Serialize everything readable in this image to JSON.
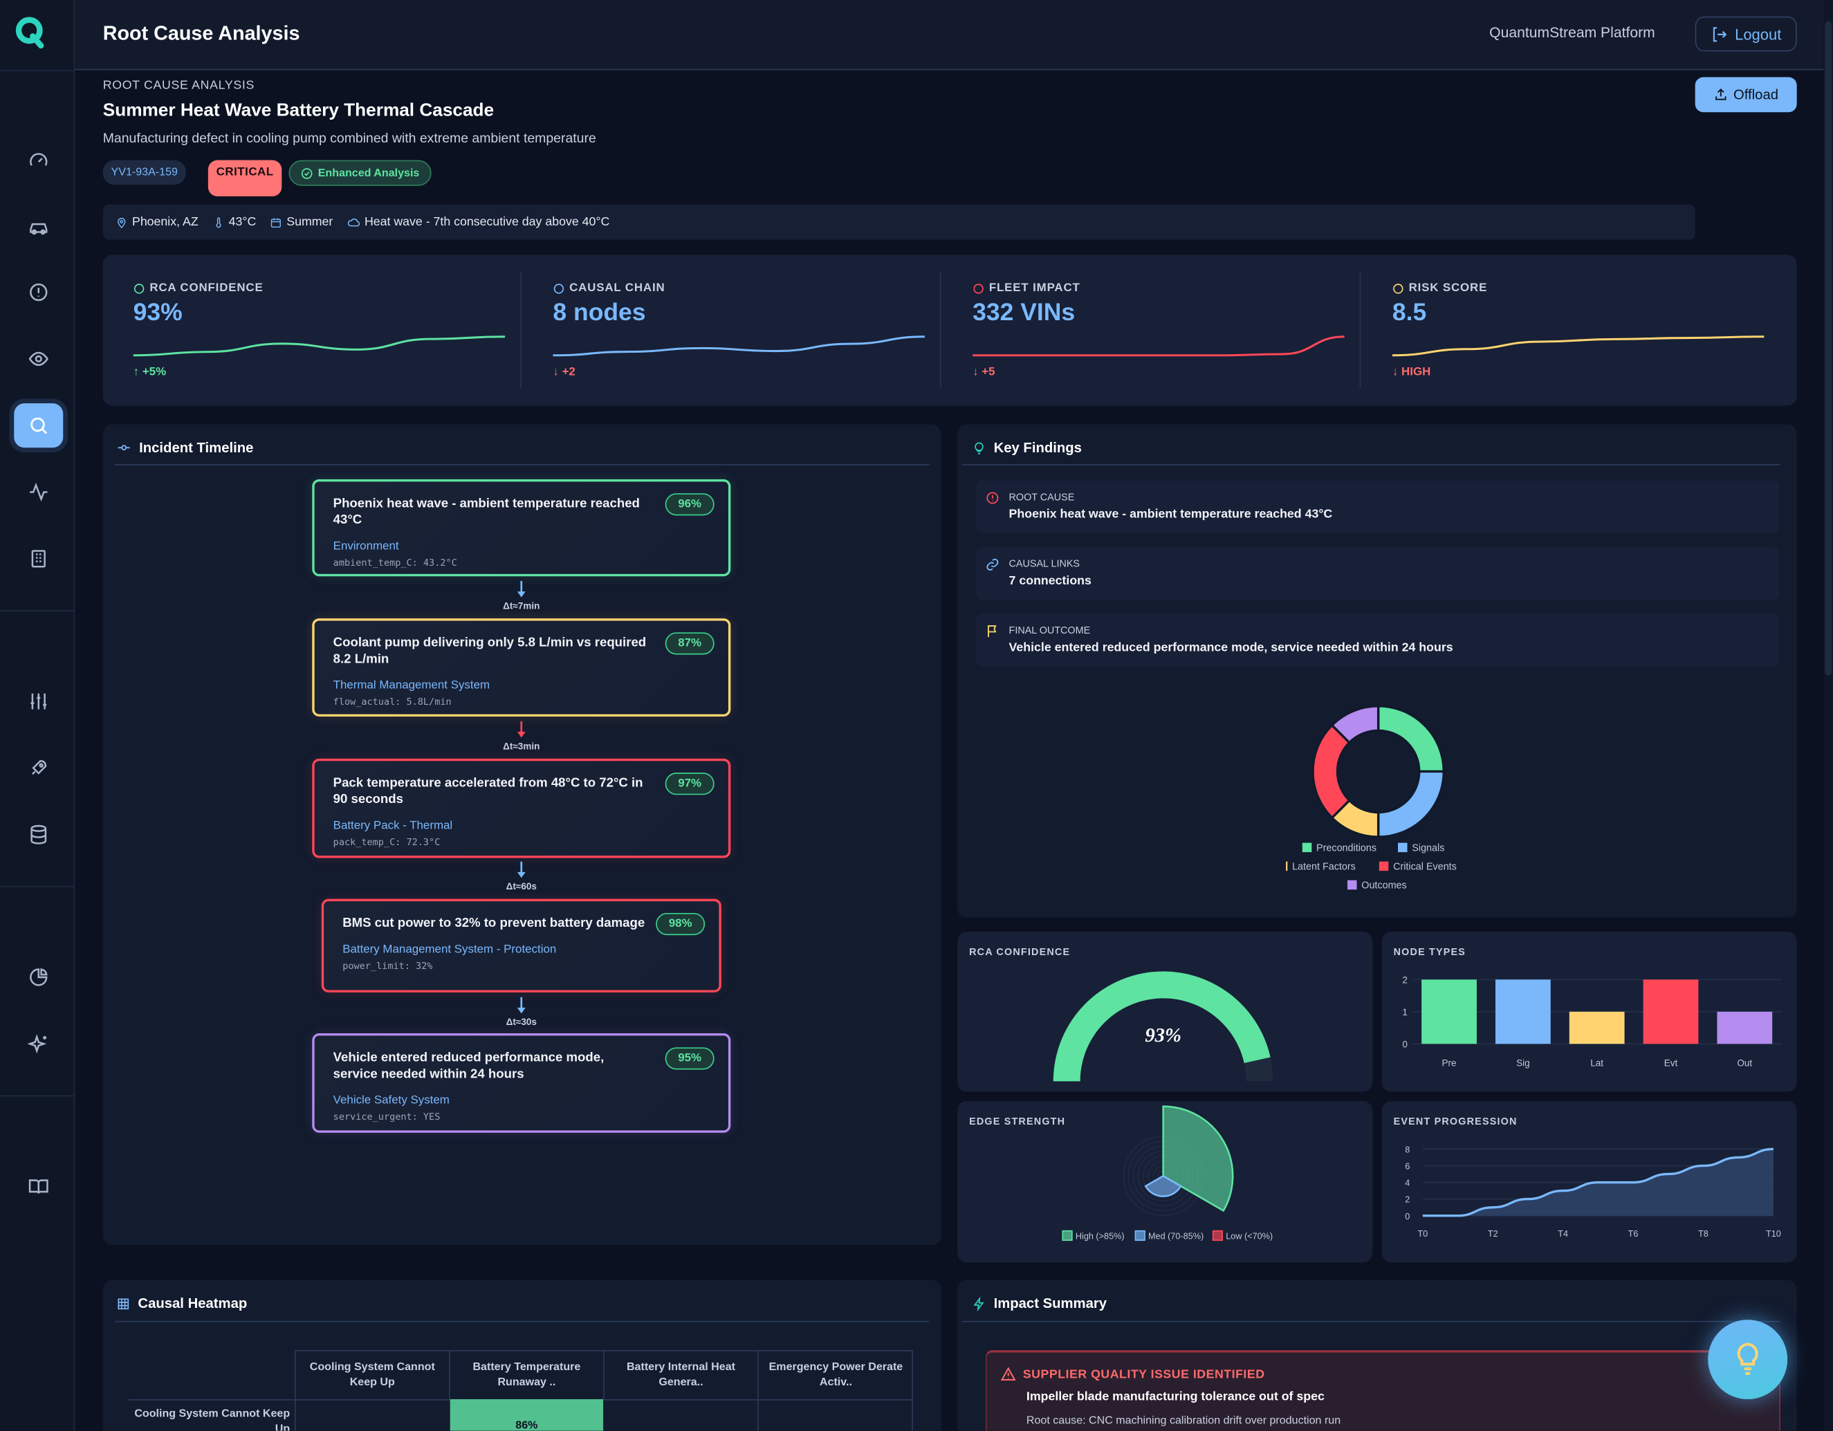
{
  "header": {
    "title": "Root Cause Analysis",
    "platform": "QuantumStream Platform",
    "logout_label": "Logout"
  },
  "sidebar": {
    "items": [
      "dashboard",
      "vehicles",
      "alerts",
      "monitoring",
      "root-cause-analysis",
      "signals",
      "reports",
      "settings",
      "deployments",
      "data",
      "analytics",
      "ai-insights",
      "docs"
    ],
    "active": "root-cause-analysis"
  },
  "page": {
    "section_label": "ROOT CAUSE ANALYSIS",
    "title": "Summer Heat Wave Battery Thermal Cascade",
    "description": "Manufacturing defect in cooling pump combined with extreme ambient temperature",
    "offload_label": "Offload",
    "badges": {
      "id": "YV1-93A-159",
      "severity": "CRITICAL",
      "analysis": "Enhanced Analysis"
    },
    "context": {
      "location": "Phoenix, AZ",
      "temperature": "43°C",
      "season": "Summer",
      "weather": "Heat wave - 7th consecutive day above 40°C"
    }
  },
  "kpis": [
    {
      "label": "RCA CONFIDENCE",
      "value": "93%",
      "delta": "↑ +5%",
      "color": "#5ee3a1",
      "delta_color": "#5ee3a1",
      "trend": [
        2,
        2.3,
        3,
        2.5,
        3.4,
        3.6
      ]
    },
    {
      "label": "CAUSAL CHAIN",
      "value": "8 nodes",
      "delta": "↓ +2",
      "color": "#7ab8fb",
      "delta_color": "#ff6b6b",
      "trend": [
        2,
        2.5,
        3,
        2.6,
        3.6,
        4.6
      ]
    },
    {
      "label": "FLEET IMPACT",
      "value": "332 VINs",
      "delta": "↓ +5",
      "color": "#ff4757",
      "delta_color": "#ff6b6b",
      "trend": [
        1,
        1,
        1,
        1,
        1,
        1.2,
        4
      ]
    },
    {
      "label": "RISK SCORE",
      "value": "8.5",
      "delta": "↓ HIGH",
      "color": "#ffd470",
      "delta_color": "#ff6b6b",
      "trend": [
        1,
        2,
        3.2,
        3.6,
        3.8,
        4
      ]
    }
  ],
  "timeline": {
    "title": "Incident Timeline",
    "events": [
      {
        "title": "Phoenix heat wave - ambient temperature reached 43°C",
        "system": "Environment",
        "metric": "ambient_temp_C: 43.2°C",
        "confidence": "96%",
        "color": "#5ee3a1"
      },
      {
        "title": "Coolant pump delivering only 5.8 L/min vs required 8.2 L/min",
        "system": "Thermal Management System",
        "metric": "flow_actual: 5.8L/min",
        "confidence": "87%",
        "color": "#ffd470"
      },
      {
        "title": "Pack temperature accelerated from 48°C to 72°C in 90 seconds",
        "system": "Battery Pack - Thermal",
        "metric": "pack_temp_C: 72.3°C",
        "confidence": "97%",
        "color": "#ff4757"
      },
      {
        "title": "BMS cut power to 32% to prevent battery damage",
        "system": "Battery Management System - Protection",
        "metric": "power_limit: 32%",
        "confidence": "98%",
        "color": "#ff4757"
      },
      {
        "title": "Vehicle entered reduced performance mode, service needed within 24 hours",
        "system": "Vehicle Safety System",
        "metric": "service_urgent: YES",
        "confidence": "95%",
        "color": "#b58cf0"
      }
    ],
    "gaps": [
      {
        "label": "Δt≈7min",
        "color": "#7ab8fb"
      },
      {
        "label": "Δt≈3min",
        "color": "#ff4757"
      },
      {
        "label": "Δt≈60s",
        "color": "#7ab8fb"
      },
      {
        "label": "Δt≈30s",
        "color": "#7ab8fb"
      }
    ]
  },
  "findings": {
    "title": "Key Findings",
    "items": [
      {
        "label": "ROOT CAUSE",
        "value": "Phoenix heat wave - ambient temperature reached 43°C"
      },
      {
        "label": "CAUSAL LINKS",
        "value": "7 connections"
      },
      {
        "label": "FINAL OUTCOME",
        "value": "Vehicle entered reduced performance mode, service needed within 24 hours"
      }
    ]
  },
  "chart_data": [
    {
      "type": "pie",
      "variant": "donut",
      "categories": [
        "Preconditions",
        "Signals",
        "Latent Factors",
        "Critical Events",
        "Outcomes"
      ],
      "values": [
        2,
        2,
        1,
        2,
        1
      ],
      "colors": [
        "#5ee3a1",
        "#7ab8fb",
        "#ffd470",
        "#ff4757",
        "#b58cf0"
      ],
      "legend": "bottom"
    },
    {
      "type": "gauge",
      "title": "RCA CONFIDENCE",
      "value": 93,
      "label": "93%",
      "max": 100,
      "color": "#5ee3a1"
    },
    {
      "type": "bar",
      "title": "NODE TYPES",
      "categories": [
        "Pre",
        "Sig",
        "Lat",
        "Evt",
        "Out"
      ],
      "values": [
        2,
        2,
        1,
        2,
        1
      ],
      "colors": [
        "#5ee3a1",
        "#7ab8fb",
        "#ffd470",
        "#ff4757",
        "#b58cf0"
      ],
      "ylim": [
        0,
        2
      ],
      "yticks": [
        "0",
        "1",
        "2"
      ],
      "grid": true
    },
    {
      "type": "polarArea",
      "title": "EDGE STRENGTH",
      "categories": [
        "High (>85%)",
        "Med (70-85%)",
        "Low (<70%)"
      ],
      "values": [
        5,
        2,
        0
      ],
      "colors": [
        "#5ee3a1",
        "#7ab8fb",
        "#ff4757"
      ],
      "legend": "bottom"
    },
    {
      "type": "area",
      "title": "EVENT PROGRESSION",
      "x": [
        "T0",
        "T1",
        "T2",
        "T3",
        "T4",
        "T5",
        "T6",
        "T7",
        "T8",
        "T9",
        "T10"
      ],
      "values": [
        0,
        0,
        1,
        2,
        3,
        4,
        4,
        5,
        6,
        7,
        8
      ],
      "xticks": [
        "T0",
        "T2",
        "T4",
        "T6",
        "T8",
        "T10"
      ],
      "yticks": [
        "0",
        "2",
        "4",
        "6",
        "8"
      ],
      "ylim": [
        0,
        8
      ],
      "color": "#7ab8fb",
      "grid": true
    }
  ],
  "heatmap": {
    "title": "Causal Heatmap",
    "columns": [
      "Cooling System Cannot Keep Up",
      "Battery Temperature Runaway ..",
      "Battery Internal Heat Genera..",
      "Emergency Power Derate Activ.."
    ],
    "rows": [
      {
        "label": "Cooling System Cannot Keep Up",
        "cells": [
          "",
          "86%",
          "",
          ""
        ]
      }
    ]
  },
  "impact": {
    "title": "Impact Summary",
    "alert_title": "SUPPLIER QUALITY ISSUE IDENTIFIED",
    "alert_headline": "Impeller blade manufacturing tolerance out of spec",
    "alert_detail": "Root cause: CNC machining calibration drift over production run"
  }
}
